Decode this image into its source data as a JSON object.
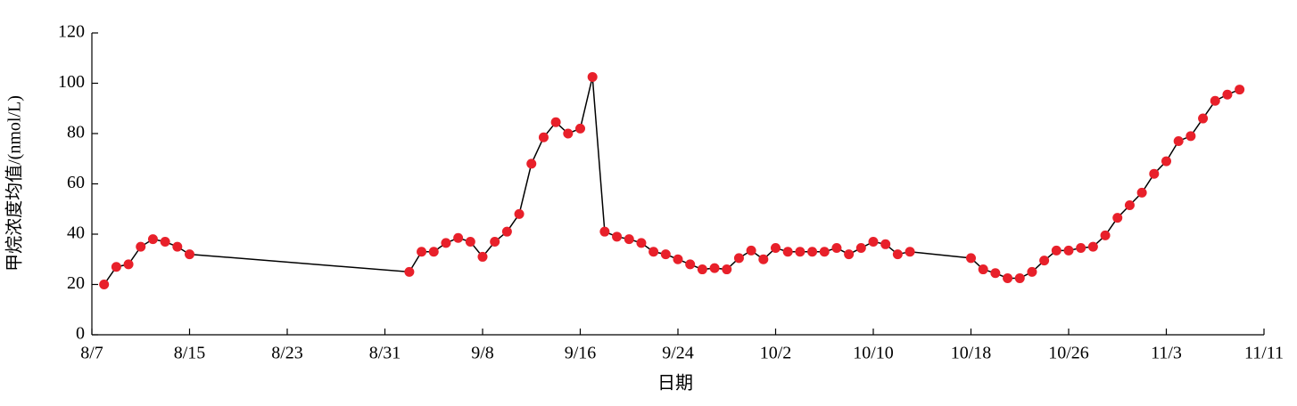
{
  "chart_data": {
    "type": "line",
    "x_label": "日期",
    "y_label": "甲烷浓度均值/(nmol/L)",
    "x": [
      "8/8",
      "8/9",
      "8/10",
      "8/11",
      "8/12",
      "8/13",
      "8/14",
      "8/15",
      "9/2",
      "9/3",
      "9/4",
      "9/5",
      "9/6",
      "9/7",
      "9/8",
      "9/9",
      "9/10",
      "9/11",
      "9/12",
      "9/13",
      "9/14",
      "9/15",
      "9/16",
      "9/17",
      "9/18",
      "9/19",
      "9/20",
      "9/21",
      "9/22",
      "9/23",
      "9/24",
      "9/25",
      "9/26",
      "9/27",
      "9/28",
      "9/29",
      "9/30",
      "10/1",
      "10/2",
      "10/3",
      "10/4",
      "10/5",
      "10/6",
      "10/7",
      "10/8",
      "10/9",
      "10/10",
      "10/11",
      "10/12",
      "10/13",
      "10/18",
      "10/19",
      "10/20",
      "10/21",
      "10/22",
      "10/23",
      "10/24",
      "10/25",
      "10/26",
      "10/27",
      "10/28",
      "10/29",
      "10/30",
      "10/31",
      "11/1",
      "11/2",
      "11/3",
      "11/4",
      "11/5",
      "11/6",
      "11/7",
      "11/8",
      "11/9"
    ],
    "values": [
      20,
      27,
      28,
      35,
      38,
      37,
      35,
      32,
      25,
      33,
      33,
      36.5,
      38.5,
      37,
      31,
      37,
      41,
      48,
      68,
      78.5,
      84.5,
      80,
      82,
      102.5,
      41,
      39,
      38,
      36.5,
      33,
      32,
      30,
      28,
      26,
      26.5,
      26,
      30.5,
      33.5,
      30,
      34.5,
      33,
      33,
      33,
      33,
      34.5,
      32,
      34.5,
      37,
      36,
      32,
      33,
      30.5,
      26,
      24.5,
      22.5,
      22.5,
      25,
      29.5,
      33.5,
      33.5,
      34.5,
      35,
      39.5,
      46.5,
      51.5,
      56.5,
      64,
      69,
      77,
      79,
      86,
      93,
      95.5,
      97.5
    ],
    "color": "#e8202a",
    "line_color": "#000000",
    "xlim": [
      "8/7",
      "11/11"
    ],
    "xticks": [
      "8/7",
      "8/15",
      "8/23",
      "8/31",
      "9/8",
      "9/16",
      "9/24",
      "10/2",
      "10/10",
      "10/18",
      "10/26",
      "11/3",
      "11/11"
    ],
    "ylim": [
      0,
      120
    ],
    "yticks": [
      0,
      20,
      40,
      60,
      80,
      100,
      120
    ]
  }
}
